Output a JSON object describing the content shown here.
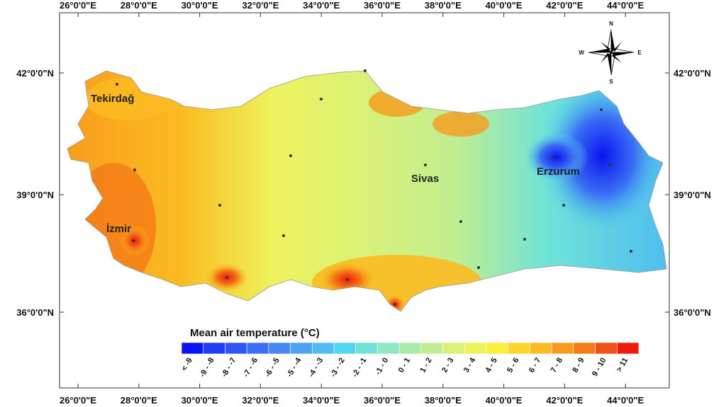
{
  "lon_labels_top": [
    "26°0'0\"E",
    "28°0'0\"E",
    "30°0'0\"E",
    "32°0'0\"E",
    "34°0'0\"E",
    "36°0'0\"E",
    "38°0'0\"E",
    "40°0'0\"E",
    "42°0'0\"E",
    "44°0'0\"E"
  ],
  "lon_labels_bottom": [
    "26°0'0\"E",
    "28°0'0\"E",
    "30°0'0\"E",
    "32°0'0\"E",
    "34°0'0\"E",
    "36°0'0\"E",
    "38°0'0\"E",
    "40°0'0\"E",
    "42°0'0\"E",
    "44°0'0\"E"
  ],
  "lat_labels_left": [
    "42°0'0\"N",
    "39°0'0\"N",
    "36°0'0\"N"
  ],
  "lat_labels_right": [
    "42°0'0\"N",
    "39°0'0\"N",
    "36°0'0\"N"
  ],
  "cities": [
    "Tekirdağ",
    "İzmir",
    "Sivas",
    "Erzurum"
  ],
  "compass": {
    "north": "N",
    "south": "S",
    "east": "E",
    "west": "W"
  },
  "legend": {
    "title": "Mean air temperature (°C)",
    "classes": [
      {
        "label": "< -9",
        "color": "#0a14f0"
      },
      {
        "label": "-9 - -8",
        "color": "#1f3cf2"
      },
      {
        "label": "-8 - -7",
        "color": "#2f55f2"
      },
      {
        "label": "-7 - -6",
        "color": "#3b6ff4"
      },
      {
        "label": "-6 - -5",
        "color": "#4787f4"
      },
      {
        "label": "-5 - -4",
        "color": "#4ea2f2"
      },
      {
        "label": "-4 - -3",
        "color": "#4fbdf0"
      },
      {
        "label": "-3 - -2",
        "color": "#52d6ee"
      },
      {
        "label": "-2 - -1",
        "color": "#6fe3d8"
      },
      {
        "label": "-1 - 0",
        "color": "#8ee8c2"
      },
      {
        "label": "0 - 1",
        "color": "#a8ebab"
      },
      {
        "label": "1 - 2",
        "color": "#c1ee92"
      },
      {
        "label": "2 - 3",
        "color": "#d9f178"
      },
      {
        "label": "3 - 4",
        "color": "#eef35c"
      },
      {
        "label": "4 - 5",
        "color": "#fbee3c"
      },
      {
        "label": "5 - 6",
        "color": "#fcd62c"
      },
      {
        "label": "6 - 7",
        "color": "#fbbb22"
      },
      {
        "label": "7 - 8",
        "color": "#f89b1c"
      },
      {
        "label": "8 - 9",
        "color": "#f57a16"
      },
      {
        "label": "9 - 10",
        "color": "#f24f12"
      },
      {
        "label": "> 11",
        "color": "#ee1a0e"
      }
    ]
  }
}
